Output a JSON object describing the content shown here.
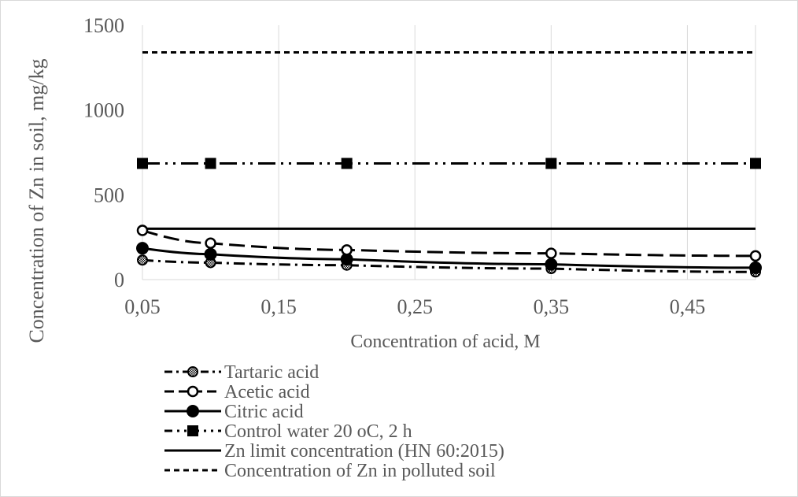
{
  "chart_data": {
    "type": "line",
    "ylabel": "Concentration of Zn in soil, mg/kg",
    "xlabel": "Concentration of acid, M",
    "xlim": [
      0.05,
      0.5
    ],
    "ylim": [
      0,
      1500
    ],
    "x_ticks": [
      "0,05",
      "0,15",
      "0,25",
      "0,35",
      "0,45"
    ],
    "x_tick_values": [
      0.05,
      0.15,
      0.25,
      0.35,
      0.45
    ],
    "y_ticks": [
      "0",
      "500",
      "1000",
      "1500"
    ],
    "y_tick_values": [
      0,
      500,
      1000,
      1500
    ],
    "grid": "vertical",
    "legend_position": "bottom",
    "x": [
      0.05,
      0.1,
      0.2,
      0.35,
      0.5
    ],
    "series": [
      {
        "name": "Tartaric acid",
        "values": [
          115,
          100,
          85,
          65,
          45
        ],
        "line": "dashdot",
        "marker": "hatched-circle",
        "color": "#000000"
      },
      {
        "name": "Acetic acid",
        "values": [
          290,
          215,
          175,
          155,
          140
        ],
        "line": "longdash",
        "marker": "open-circle",
        "color": "#000000"
      },
      {
        "name": "Citric acid",
        "values": [
          185,
          150,
          120,
          90,
          70
        ],
        "line": "solid",
        "marker": "filled-circle",
        "color": "#000000"
      },
      {
        "name": "Control water 20 oC, 2 h",
        "values": [
          685,
          685,
          685,
          685,
          685
        ],
        "line": "dashdotdot",
        "marker": "square",
        "color": "#000000"
      },
      {
        "name": "Zn limit concentration (HN 60:2015)",
        "values": [
          300,
          300,
          300,
          300,
          300
        ],
        "line": "solid",
        "marker": "none",
        "color": "#000000"
      },
      {
        "name": "Concentration of Zn in polluted soil",
        "values": [
          1340,
          1340,
          1340,
          1340,
          1340
        ],
        "line": "shortdash",
        "marker": "none",
        "color": "#000000"
      }
    ]
  }
}
